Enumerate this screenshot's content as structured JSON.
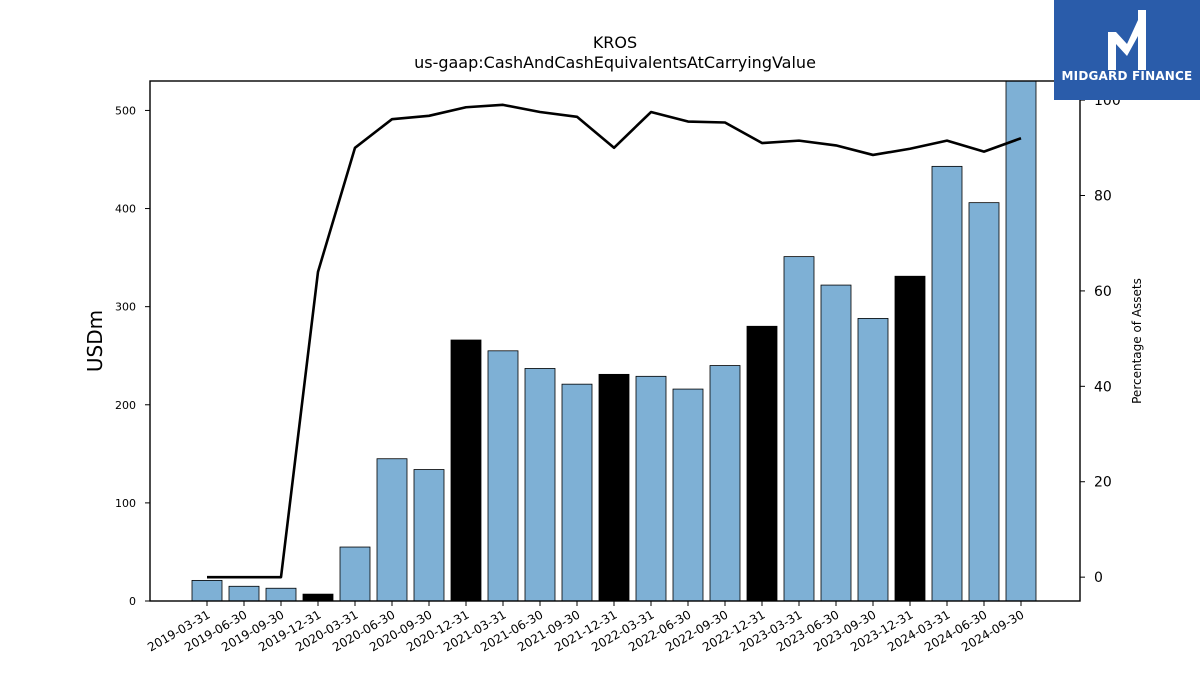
{
  "chart_data": {
    "type": "bar",
    "title": "KROS",
    "subtitle": "us-gaap:CashAndCashEquivalentsAtCarryingValue",
    "ylabel": "USDm",
    "y2label": "Percentage of Assets",
    "categories": [
      "2019-03-31",
      "2019-06-30",
      "2019-09-30",
      "2019-12-31",
      "2020-03-31",
      "2020-06-30",
      "2020-09-30",
      "2020-12-31",
      "2021-03-31",
      "2021-06-30",
      "2021-09-30",
      "2021-12-31",
      "2022-03-31",
      "2022-06-30",
      "2022-09-30",
      "2022-12-31",
      "2023-03-31",
      "2023-06-30",
      "2023-09-30",
      "2023-12-31",
      "2024-03-31",
      "2024-06-30",
      "2024-09-30"
    ],
    "series": [
      {
        "type": "bar",
        "axis": "left",
        "values": [
          21,
          15,
          13,
          7,
          55,
          145,
          134,
          266,
          255,
          237,
          221,
          231,
          229,
          216,
          240,
          280,
          351,
          322,
          288,
          331,
          443,
          406,
          532
        ],
        "highlighted": [
          false,
          false,
          false,
          true,
          false,
          false,
          false,
          true,
          false,
          false,
          false,
          true,
          false,
          false,
          false,
          true,
          false,
          false,
          false,
          true,
          false,
          false,
          false
        ]
      },
      {
        "type": "line",
        "axis": "right",
        "values": [
          0,
          0,
          0,
          64,
          90,
          96,
          96.7,
          98.5,
          99,
          97.5,
          96.5,
          90,
          97.5,
          95.5,
          95.3,
          91,
          91.5,
          90.5,
          88.5,
          89.8,
          91.5,
          89.2,
          92
        ]
      }
    ],
    "ylim": [
      0,
      530
    ],
    "y2lim": [
      -5,
      104
    ],
    "yticks": [
      0,
      100,
      200,
      300,
      400,
      500
    ],
    "y2ticks": [
      0,
      20,
      40,
      60,
      80,
      100
    ],
    "colors": {
      "bar": "#7eb0d5",
      "bar_highlight": "#000000",
      "line": "#000000",
      "axis": "#000000"
    },
    "grid": false
  },
  "logo": {
    "text": "MIDGARD FINANCE",
    "background": "#2a5caa"
  }
}
